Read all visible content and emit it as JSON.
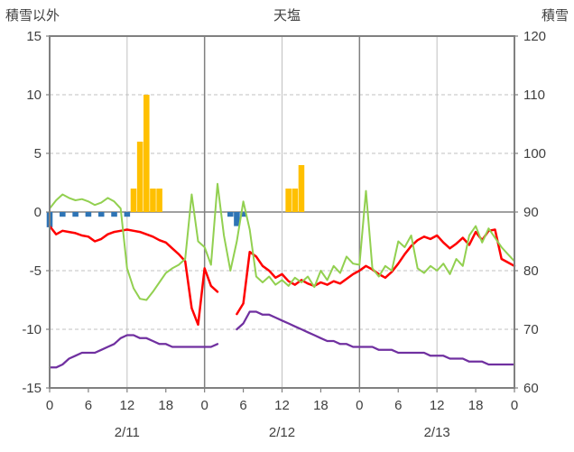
{
  "colors": {
    "border": "#808080",
    "grid_minor": "#c0c0c0",
    "grid_zero": "#808080",
    "tick_text": "#3f3f3f",
    "snowfall_bar": "#FFC000",
    "blue_bar": "#2E74B5",
    "red_line": "#FF0000",
    "green_line": "#92D050",
    "purple_line": "#7030A0"
  },
  "chart_data": {
    "type": "combo",
    "title": "天塩",
    "left_axis": {
      "title": "積雪以外",
      "min": -15,
      "max": 15,
      "ticks": [
        15,
        10,
        5,
        0,
        -5,
        -10,
        -15
      ]
    },
    "right_axis": {
      "title": "積雪",
      "min": 60,
      "max": 120,
      "ticks": [
        120,
        110,
        100,
        90,
        80,
        70,
        60
      ]
    },
    "x_axis": {
      "unit": "hour",
      "range": [
        0,
        72
      ],
      "tick_interval": 6,
      "tick_labels": [
        "0",
        "6",
        "12",
        "18",
        "0",
        "6",
        "12",
        "18",
        "0",
        "6",
        "12",
        "18",
        "0"
      ],
      "day_labels": [
        {
          "label": "2/11",
          "center_hour": 12
        },
        {
          "label": "2/12",
          "center_hour": 36
        },
        {
          "label": "2/13",
          "center_hour": 60
        }
      ],
      "vlines_solid_hours": [
        24,
        48
      ],
      "vlines_minor_hours": [
        12,
        36,
        60
      ]
    },
    "series": [
      {
        "name": "snowfall-bars",
        "type": "bar",
        "axis": "left",
        "color": "#FFC000",
        "points": [
          [
            13,
            2
          ],
          [
            14,
            6
          ],
          [
            15,
            10
          ],
          [
            16,
            2
          ],
          [
            17,
            2
          ],
          [
            37,
            2
          ],
          [
            38,
            2
          ],
          [
            39,
            4
          ]
        ]
      },
      {
        "name": "blue-bars",
        "type": "bar",
        "axis": "left",
        "color": "#2E74B5",
        "points": [
          [
            0,
            -1.3
          ],
          [
            2,
            -0.4
          ],
          [
            4,
            -0.4
          ],
          [
            6,
            -0.4
          ],
          [
            8,
            -0.4
          ],
          [
            10,
            -0.4
          ],
          [
            12,
            -0.4
          ],
          [
            28,
            -0.4
          ],
          [
            29,
            -1.2
          ],
          [
            30,
            -0.4
          ]
        ]
      },
      {
        "name": "red-line",
        "type": "line",
        "axis": "left",
        "color": "#FF0000",
        "width": 2.5,
        "values": [
          -1.2,
          -1.9,
          -1.6,
          -1.7,
          -1.8,
          -2.0,
          -2.1,
          -2.5,
          -2.3,
          -1.9,
          -1.7,
          -1.6,
          -1.5,
          -1.6,
          -1.7,
          -1.9,
          -2.1,
          -2.4,
          -2.6,
          -3.1,
          -3.6,
          -4.2,
          -8.2,
          -9.6,
          -4.8,
          -6.3,
          -6.8,
          null,
          null,
          -8.7,
          -7.8,
          -3.4,
          -3.8,
          -4.6,
          -5.0,
          -5.6,
          -5.3,
          -5.9,
          -6.2,
          -5.8,
          -6.1,
          -6.3,
          -6.0,
          -6.2,
          -5.9,
          -6.1,
          -5.7,
          -5.3,
          -5.0,
          -4.6,
          -4.9,
          -5.3,
          -5.6,
          -5.1,
          -4.4,
          -3.6,
          -2.9,
          -2.4,
          -2.1,
          -2.3,
          -2.0,
          -2.6,
          -3.1,
          -2.7,
          -2.2,
          -2.8,
          -1.7,
          -2.4,
          -1.6,
          -1.5,
          -4.0,
          -4.3,
          -4.6
        ]
      },
      {
        "name": "green-line",
        "type": "line",
        "axis": "left",
        "color": "#92D050",
        "width": 2,
        "values": [
          0.3,
          1.0,
          1.5,
          1.2,
          1.0,
          1.1,
          0.9,
          0.6,
          0.8,
          1.2,
          0.9,
          0.3,
          -4.8,
          -6.5,
          -7.4,
          -7.5,
          -6.8,
          -6.0,
          -5.2,
          -4.8,
          -4.5,
          -4.0,
          1.5,
          -2.5,
          -3.0,
          -4.5,
          2.4,
          -2.0,
          -5.0,
          -2.5,
          0.9,
          -1.5,
          -5.5,
          -6.0,
          -5.5,
          -6.2,
          -5.8,
          -6.3,
          -5.6,
          -6.0,
          -5.5,
          -6.4,
          -5.0,
          -5.8,
          -4.6,
          -5.2,
          -3.8,
          -4.4,
          -4.5,
          1.8,
          -4.8,
          -5.5,
          -4.6,
          -5.0,
          -2.5,
          -3.0,
          -2.0,
          -4.8,
          -5.2,
          -4.6,
          -5.0,
          -4.4,
          -5.3,
          -4.0,
          -4.6,
          -2.0,
          -1.2,
          -2.6,
          -1.4,
          -2.2,
          -3.0,
          -3.6,
          -4.2
        ]
      },
      {
        "name": "purple-line",
        "type": "line",
        "axis": "right",
        "color": "#7030A0",
        "width": 2.25,
        "values": [
          63.5,
          63.5,
          64,
          65,
          65.5,
          66,
          66,
          66,
          66.5,
          67,
          67.5,
          68.5,
          69,
          69,
          68.5,
          68.5,
          68,
          67.5,
          67.5,
          67,
          67,
          67,
          67,
          67,
          67,
          67,
          67.5,
          null,
          null,
          70,
          71,
          73,
          73,
          72.5,
          72.5,
          72,
          71.5,
          71,
          70.5,
          70,
          69.5,
          69,
          68.5,
          68,
          68,
          67.5,
          67.5,
          67,
          67,
          67,
          67,
          66.5,
          66.5,
          66.5,
          66,
          66,
          66,
          66,
          66,
          65.5,
          65.5,
          65.5,
          65,
          65,
          65,
          64.5,
          64.5,
          64.5,
          64,
          64,
          64,
          64,
          64
        ]
      }
    ]
  }
}
